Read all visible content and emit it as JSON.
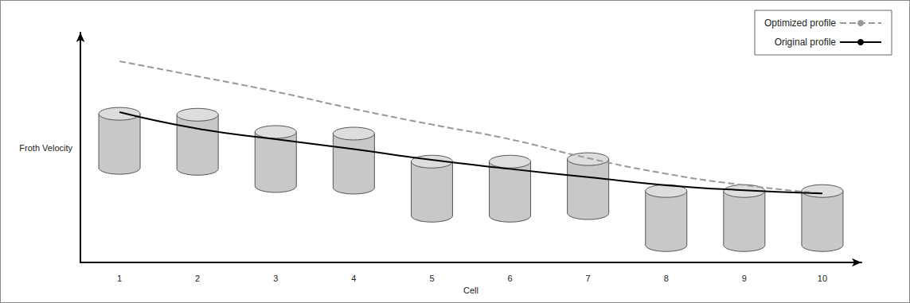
{
  "chart_data": {
    "type": "line",
    "x_label": "Cell",
    "y_label": "Froth Velocity",
    "categories": [
      "1",
      "2",
      "3",
      "4",
      "5",
      "6",
      "7",
      "8",
      "9",
      "10"
    ],
    "ylim": [
      0,
      100
    ],
    "tick_labels": "x",
    "grid": false,
    "legend": "upper right",
    "series": [
      {
        "type": "cylinder",
        "color": "#c8c8c8",
        "values": [
          52.9,
          52.5,
          45,
          44.3,
          32.1,
          32.1,
          33.2,
          19.3,
          19.3,
          19.3
        ]
      },
      {
        "name": "Optimized profile",
        "color": "#999999",
        "line_style": "dashed",
        "values": [
          87.5,
          81,
          74.3,
          66.8,
          60,
          53.6,
          45.4,
          38.6,
          33.6,
          30
        ]
      },
      {
        "name": "Original profile",
        "color": "#000000",
        "line_style": "solid",
        "values": [
          65.4,
          58.2,
          53.6,
          49.3,
          44.6,
          40.7,
          37.1,
          33.6,
          31.4,
          30
        ]
      }
    ]
  }
}
